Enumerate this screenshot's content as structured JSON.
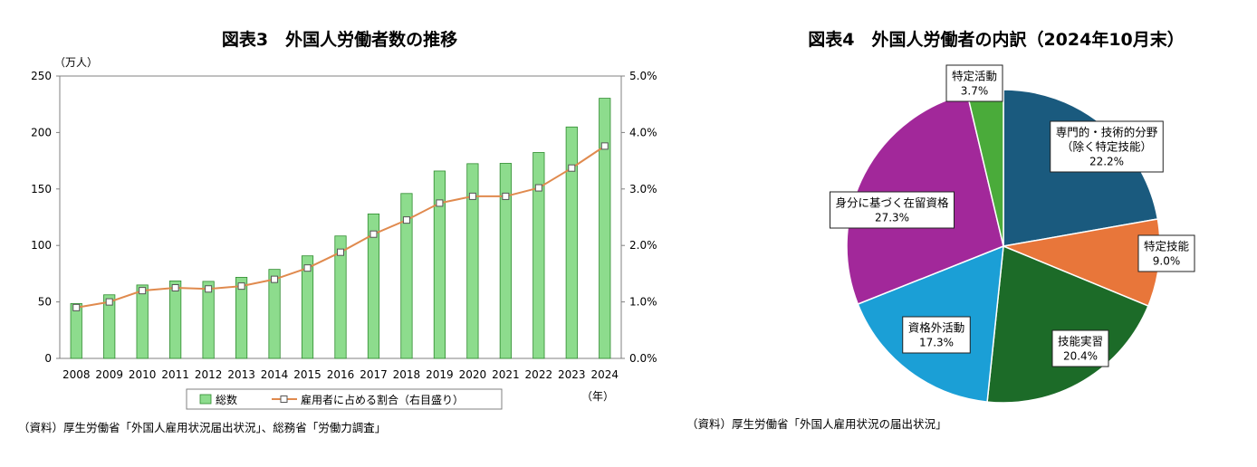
{
  "chart_data": [
    {
      "type": "bar",
      "title": "図表3　外国人労働者数の推移",
      "y_unit_label": "（万人）",
      "x_unit_label": "（年）",
      "categories": [
        "2008",
        "2009",
        "2010",
        "2011",
        "2012",
        "2013",
        "2014",
        "2015",
        "2016",
        "2017",
        "2018",
        "2019",
        "2020",
        "2021",
        "2022",
        "2023",
        "2024"
      ],
      "series": [
        {
          "name": "総数",
          "type": "bar",
          "axis": "left",
          "color": "#8ddc8d",
          "stroke": "#2e8b2e",
          "values": [
            48.6,
            56.3,
            65.0,
            68.6,
            68.2,
            71.8,
            78.8,
            90.8,
            108.4,
            127.9,
            146.0,
            165.9,
            172.4,
            172.7,
            182.3,
            204.9,
            230.3
          ]
        },
        {
          "name": "雇用者に占める割合（右目盛り）",
          "type": "line",
          "axis": "right",
          "color": "#e08a4e",
          "values": [
            0.9,
            1.0,
            1.2,
            1.25,
            1.23,
            1.28,
            1.4,
            1.6,
            1.88,
            2.2,
            2.45,
            2.75,
            2.87,
            2.87,
            3.02,
            3.37,
            3.76
          ]
        }
      ],
      "ylim_left": [
        0,
        250
      ],
      "yticks_left": [
        "0",
        "50",
        "100",
        "150",
        "200",
        "250"
      ],
      "ylim_right": [
        0,
        5
      ],
      "yticks_right": [
        "0.0%",
        "1.0%",
        "2.0%",
        "3.0%",
        "4.0%",
        "5.0%"
      ],
      "legend_position": "bottom",
      "source": "（資料）厚生労働省「外国人雇用状況届出状況」、総務省「労働力調査」"
    },
    {
      "type": "pie",
      "title": "図表4　外国人労働者の内訳（2024年10月末）",
      "slices": [
        {
          "label_lines": [
            "専門的・技術的分野",
            "（除く特定技能）"
          ],
          "value": 22.2,
          "value_label": "22.2%",
          "color": "#1a5a7e"
        },
        {
          "label_lines": [
            "特定技能"
          ],
          "value": 9.0,
          "value_label": "9.0%",
          "color": "#e8763a"
        },
        {
          "label_lines": [
            "技能実習"
          ],
          "value": 20.4,
          "value_label": "20.4%",
          "color": "#1c6b28"
        },
        {
          "label_lines": [
            "資格外活動"
          ],
          "value": 17.3,
          "value_label": "17.3%",
          "color": "#1b9fd6"
        },
        {
          "label_lines": [
            "身分に基づく在留資格"
          ],
          "value": 27.3,
          "value_label": "27.3%",
          "color": "#a2289a"
        },
        {
          "label_lines": [
            "特定活動"
          ],
          "value": 3.7,
          "value_label": "3.7%",
          "color": "#4aab3a"
        }
      ],
      "source": "（資料）厚生労働省「外国人雇用状況の届出状況」"
    }
  ]
}
